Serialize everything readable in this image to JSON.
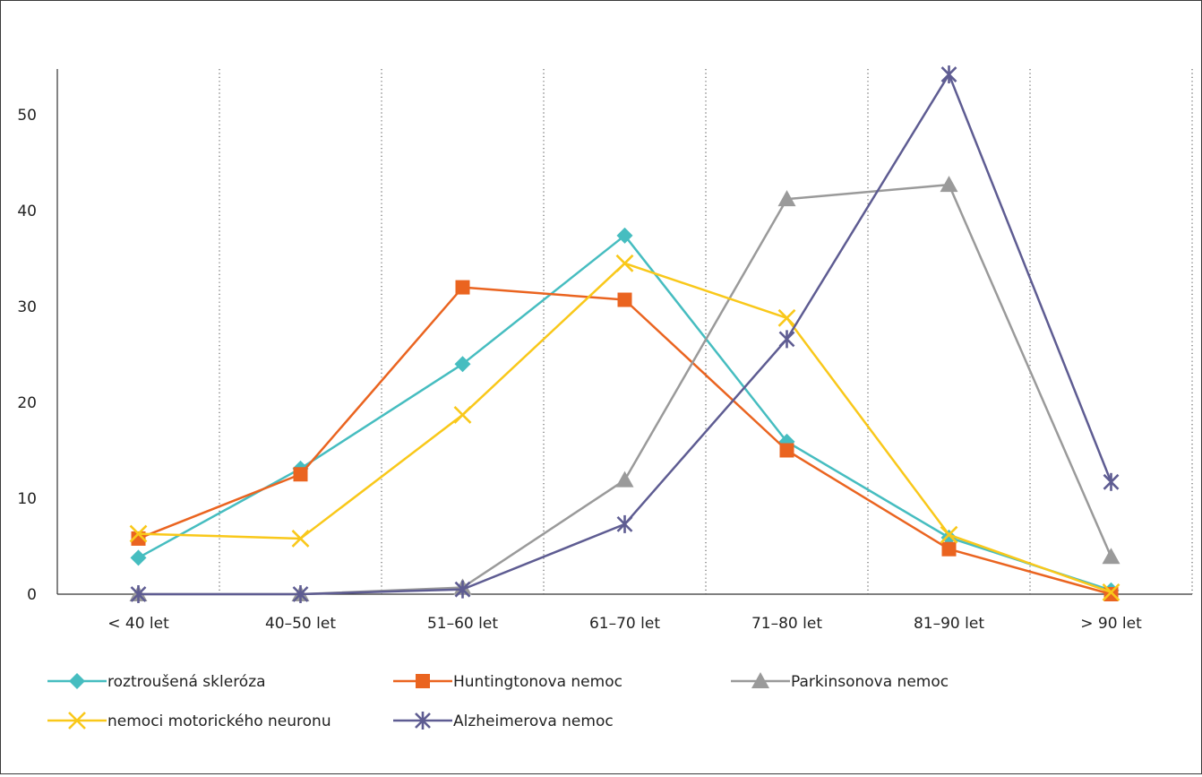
{
  "chart_data": {
    "type": "line",
    "categories": [
      "< 40 let",
      "40–50 let",
      "51–60 let",
      "61–70 let",
      "71–80 let",
      "81–90 let",
      "> 90 let"
    ],
    "ylim": [
      0,
      55
    ],
    "yticks": [
      0,
      10,
      20,
      30,
      40,
      50
    ],
    "grid": "vertical dotted separators between categories",
    "legend_position": "bottom",
    "series": [
      {
        "name": "roztroušená skleróza",
        "color": "#46bdc0",
        "marker": "diamond",
        "values": [
          3.8,
          13.1,
          24.0,
          37.4,
          15.9,
          5.9,
          0.4
        ]
      },
      {
        "name": "Huntingtonova nemoc",
        "color": "#ea6420",
        "marker": "square",
        "values": [
          5.8,
          12.5,
          32.0,
          30.7,
          15.0,
          4.7,
          0.0
        ]
      },
      {
        "name": "Parkinsonova nemoc",
        "color": "#9a9a9a",
        "marker": "triangle",
        "values": [
          0.0,
          0.0,
          0.7,
          11.9,
          41.2,
          42.7,
          3.9
        ]
      },
      {
        "name": "nemoci motorického neuronu",
        "color": "#f9c81a",
        "marker": "x",
        "values": [
          6.3,
          5.8,
          18.7,
          34.5,
          28.8,
          6.2,
          0.2
        ]
      },
      {
        "name": "Alzheimerova nemoc",
        "color": "#5e5c92",
        "marker": "asterisk",
        "values": [
          0.0,
          0.0,
          0.5,
          7.3,
          26.6,
          54.2,
          11.7
        ]
      }
    ]
  }
}
